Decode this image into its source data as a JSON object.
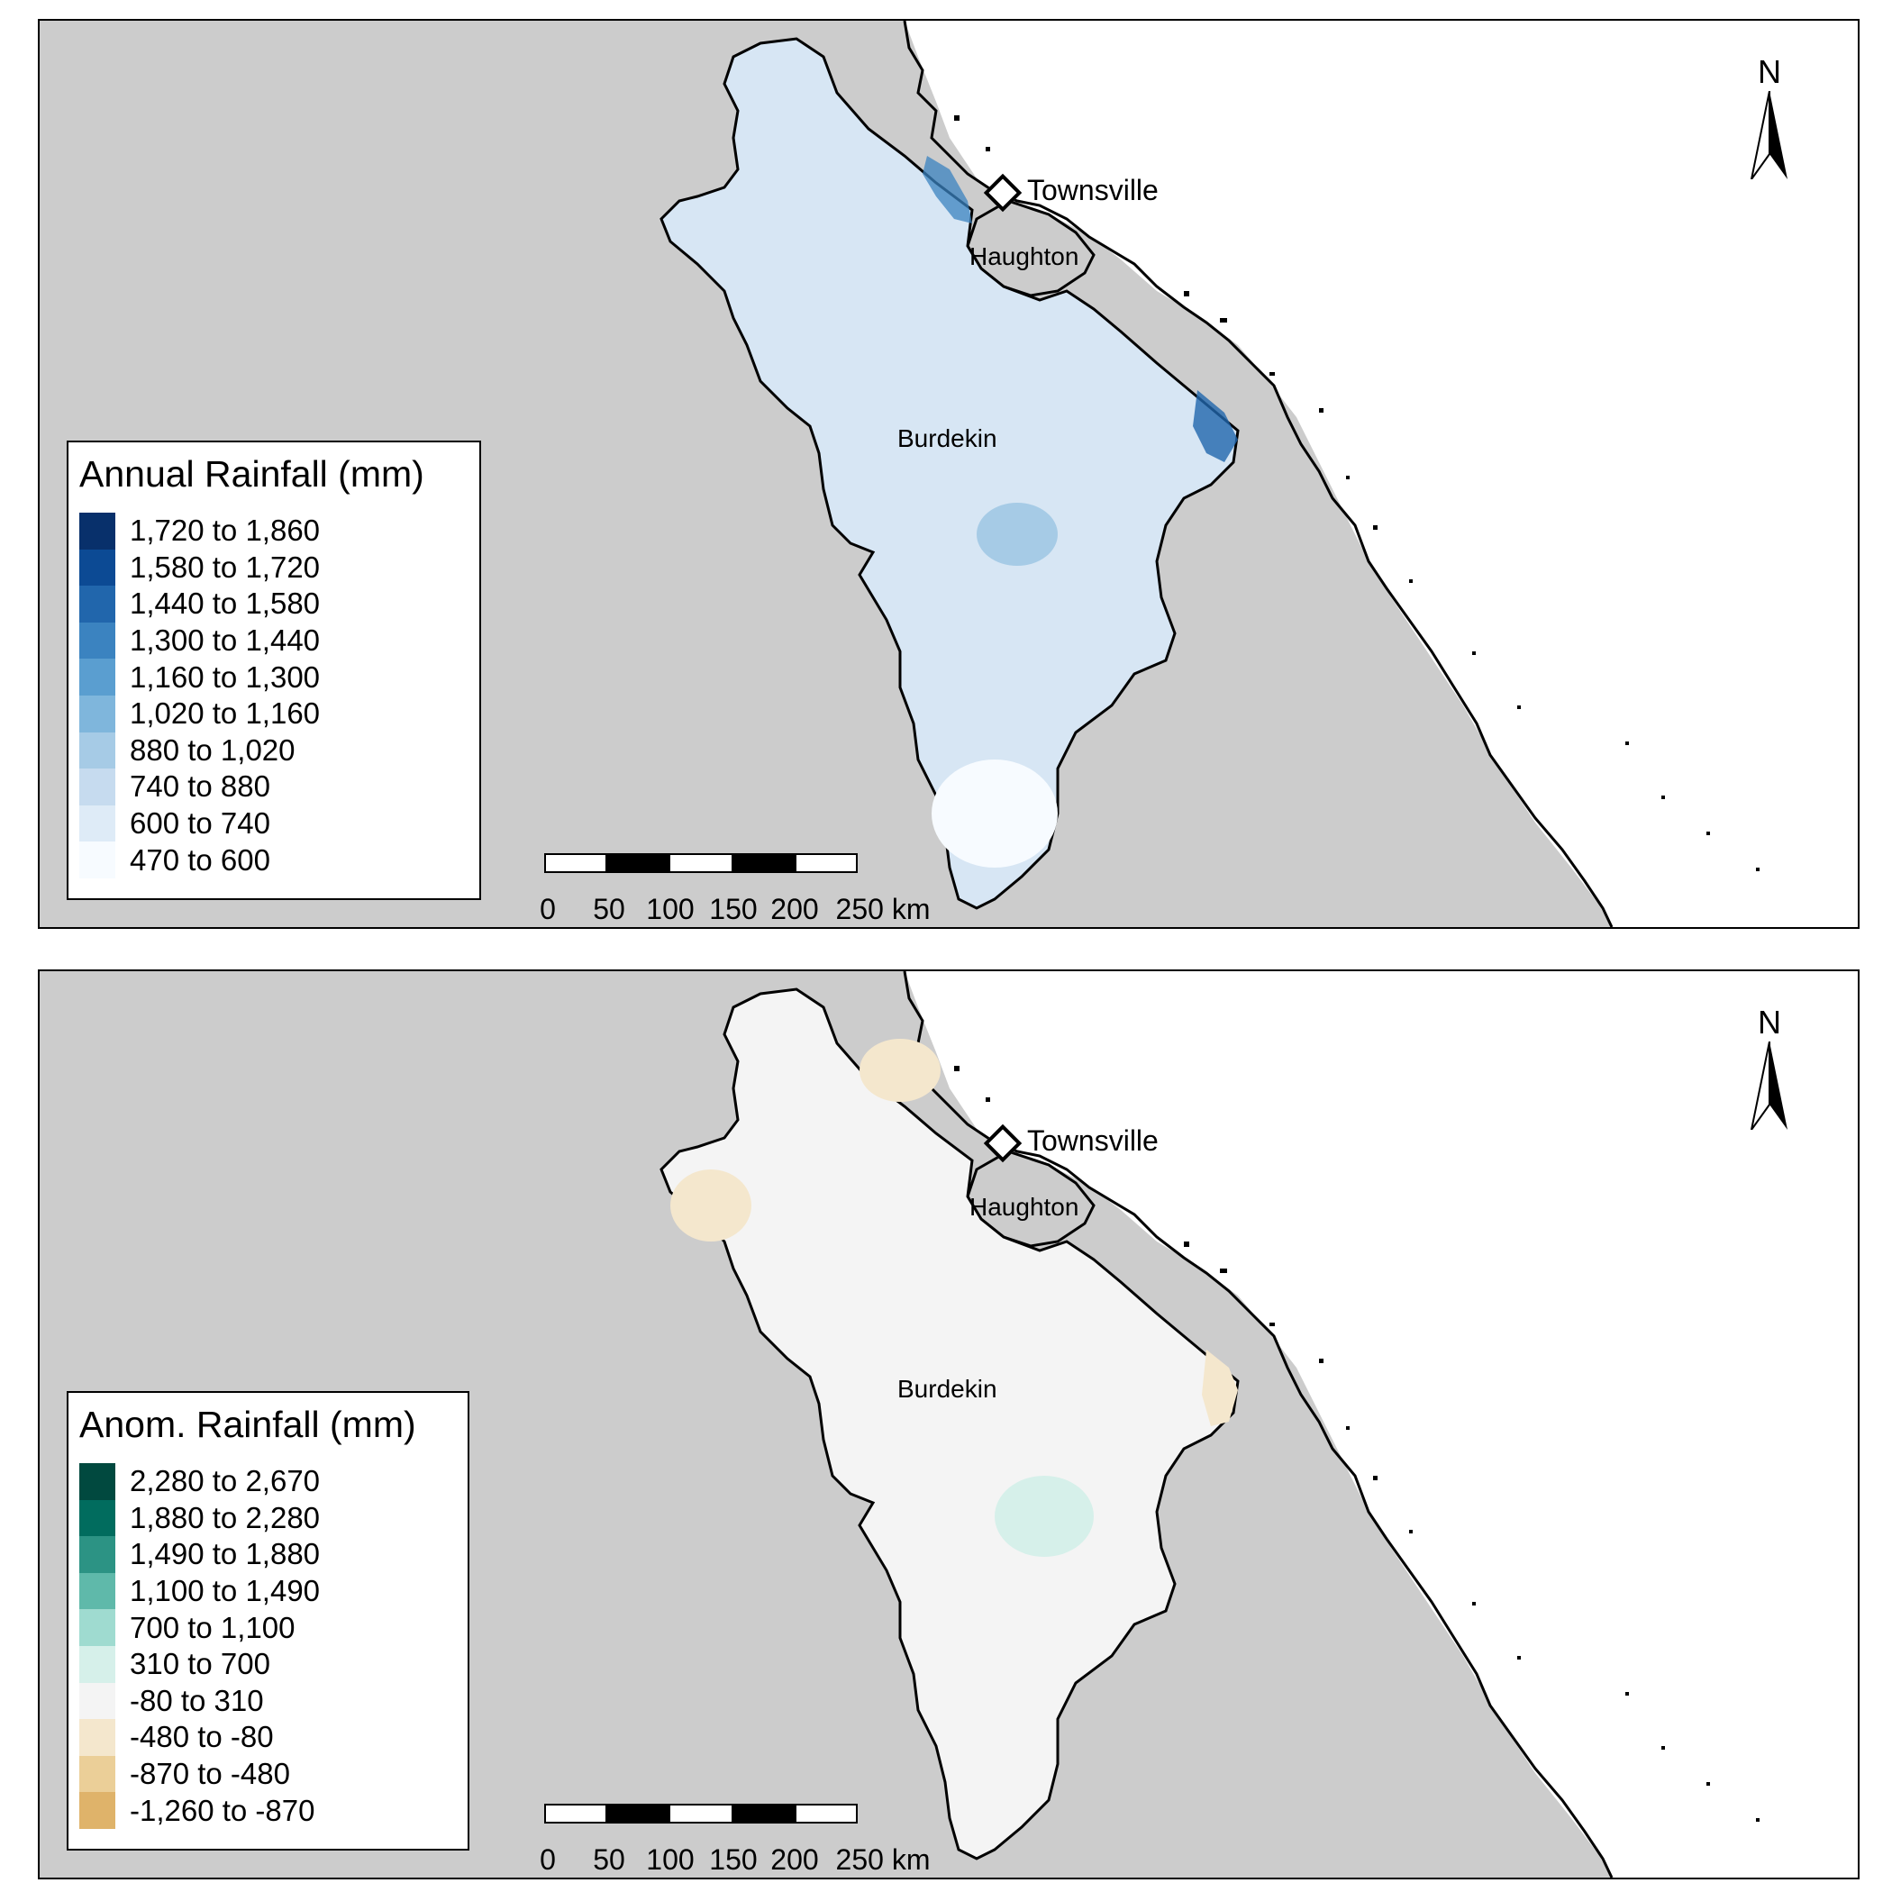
{
  "maps": [
    {
      "legend": {
        "title": "Annual Rainfall (mm)",
        "items": [
          {
            "label": "1,720 to 1,860",
            "color": "#08306b"
          },
          {
            "label": "1,580 to 1,720",
            "color": "#0c4a94"
          },
          {
            "label": "1,440 to 1,580",
            "color": "#2166ac"
          },
          {
            "label": "1,300 to 1,440",
            "color": "#3b83c0"
          },
          {
            "label": "1,160 to 1,300",
            "color": "#5a9ed0"
          },
          {
            "label": "1,020 to 1,160",
            "color": "#7fb6dc"
          },
          {
            "label": "880 to 1,020",
            "color": "#a6cbe6"
          },
          {
            "label": "740 to 880",
            "color": "#c6dbef"
          },
          {
            "label": "600 to 740",
            "color": "#deebf7"
          },
          {
            "label": "470 to 600",
            "color": "#f7fbff"
          }
        ]
      },
      "catchment_color": "#d7e6f4",
      "places": {
        "townsville": "Townsville",
        "haughton": "Haughton",
        "burdekin": "Burdekin"
      },
      "north_label": "N",
      "scalebar": {
        "ticks": [
          "0",
          "50",
          "100",
          "150",
          "200",
          "250 km"
        ]
      }
    },
    {
      "legend": {
        "title": "Anom. Rainfall (mm)",
        "items": [
          {
            "label": "2,280 to 2,670",
            "color": "#01493f"
          },
          {
            "label": "1,880 to 2,280",
            "color": "#016c5e"
          },
          {
            "label": "1,490 to 1,880",
            "color": "#2c9384"
          },
          {
            "label": "1,100 to 1,490",
            "color": "#5fb9aa"
          },
          {
            "label": "700 to 1,100",
            "color": "#9fdbd0"
          },
          {
            "label": "310 to 700",
            "color": "#d6f0ea"
          },
          {
            "label": "-80 to 310",
            "color": "#f4f4f4"
          },
          {
            "label": "-480 to -80",
            "color": "#f4e7cd"
          },
          {
            "label": "-870 to -480",
            "color": "#ebcf98"
          },
          {
            "label": "-1,260 to -870",
            "color": "#dfb36a"
          }
        ]
      },
      "catchment_color": "#f4f4f4",
      "places": {
        "townsville": "Townsville",
        "haughton": "Haughton",
        "burdekin": "Burdekin"
      },
      "north_label": "N",
      "scalebar": {
        "ticks": [
          "0",
          "50",
          "100",
          "150",
          "200",
          "250 km"
        ]
      }
    }
  ]
}
